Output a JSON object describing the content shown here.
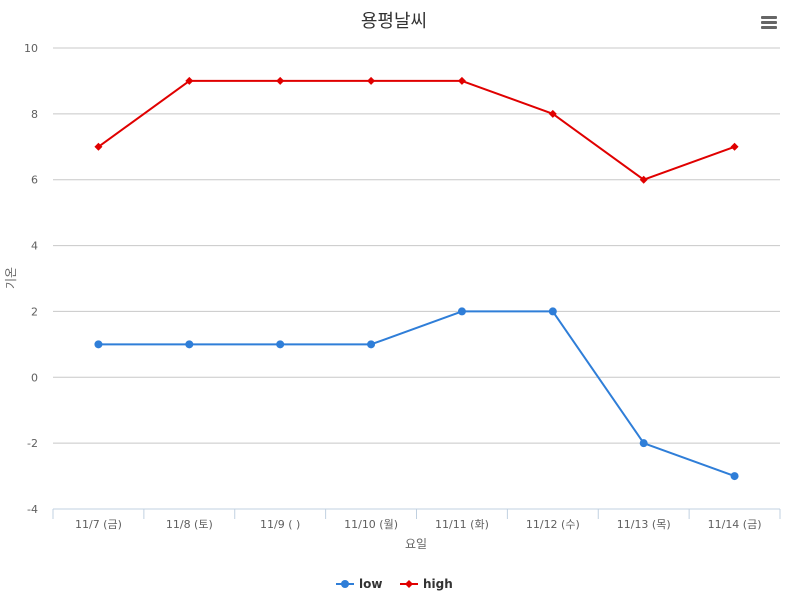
{
  "chart_data": {
    "type": "line",
    "title": "용평날씨",
    "xlabel": "요일",
    "ylabel": "기온",
    "categories": [
      "11/7 (금)",
      "11/8 (토)",
      "11/9 ( )",
      "11/10 (월)",
      "11/11 (화)",
      "11/12 (수)",
      "11/13 (목)",
      "11/14 (금)"
    ],
    "ylim": [
      -4,
      10
    ],
    "yticks": [
      "10",
      "8",
      "6",
      "4",
      "2",
      "0",
      "-2",
      "-4"
    ],
    "grid": true,
    "legend_position": "bottom-center",
    "series": [
      {
        "name": "low",
        "color": "#2f7ed8",
        "marker": "circle",
        "values": [
          1,
          1,
          1,
          1,
          2,
          2,
          -2,
          -3
        ]
      },
      {
        "name": "high",
        "color": "#e00000",
        "marker": "diamond",
        "values": [
          7,
          9,
          9,
          9,
          9,
          8,
          6,
          7
        ]
      }
    ]
  },
  "menu_icon": "hamburger-menu-icon"
}
